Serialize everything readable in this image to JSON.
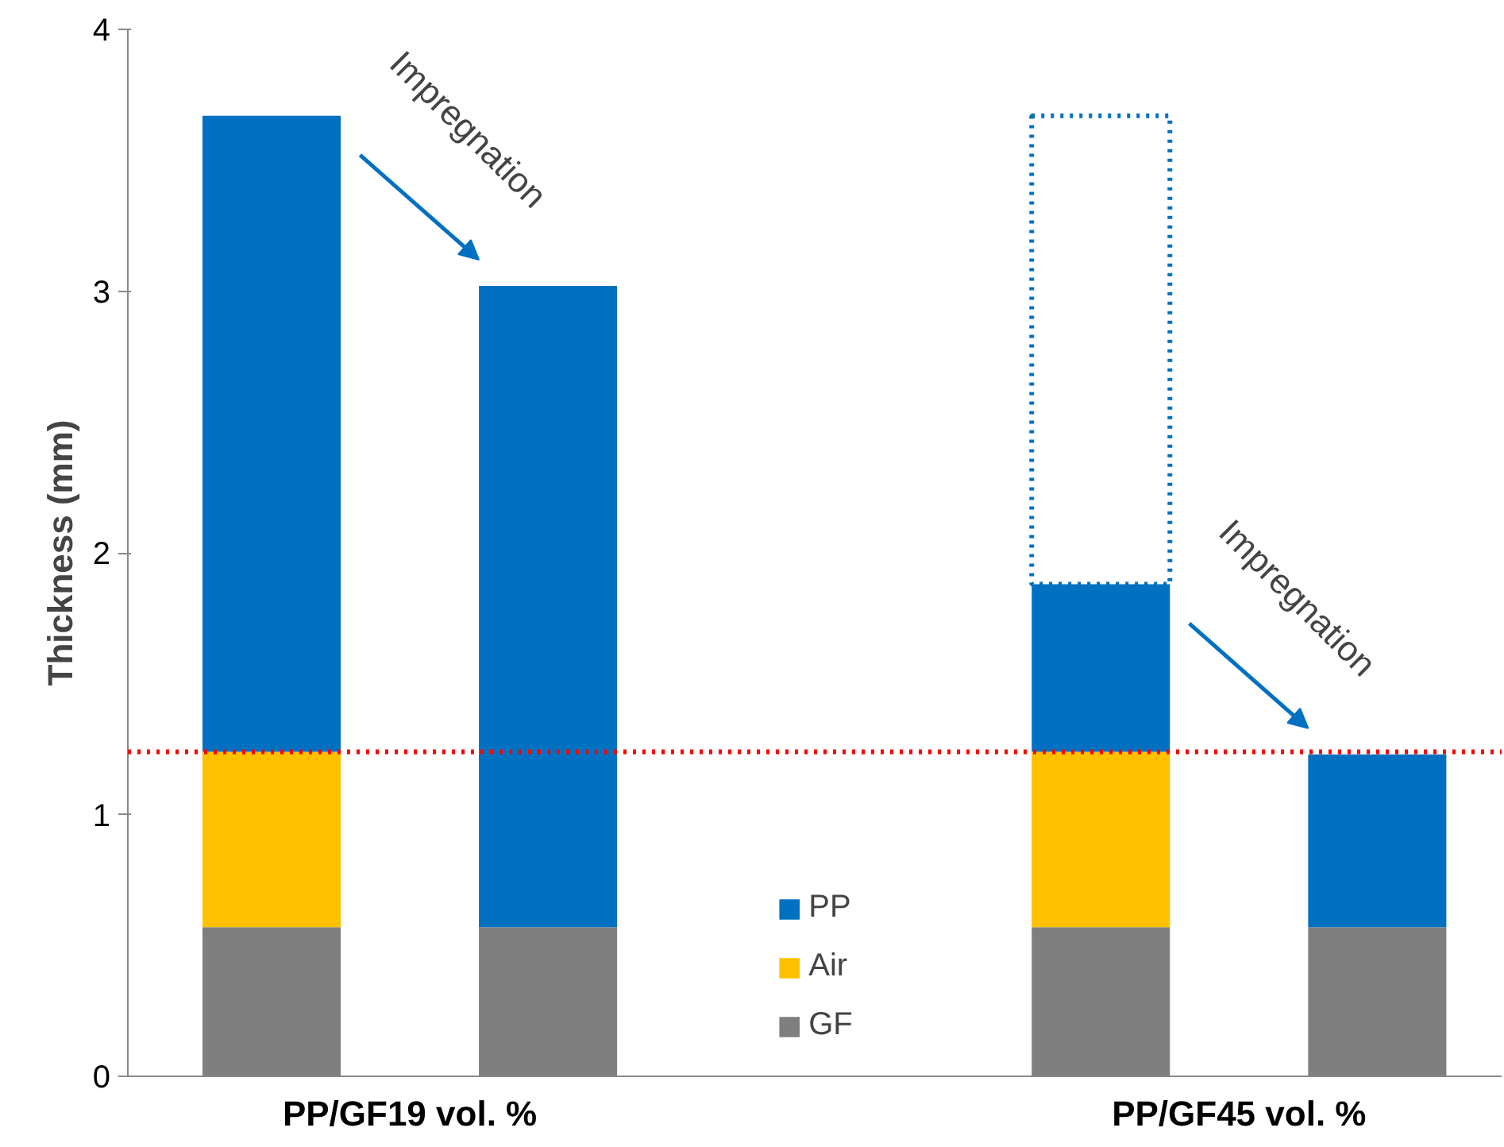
{
  "chart_data": {
    "type": "bar",
    "stacked": true,
    "ylabel": "Thickness (mm)",
    "categories": [
      null,
      null,
      null,
      null,
      null
    ],
    "ylim": [
      0,
      4
    ],
    "yticks": [
      0,
      1,
      2,
      3,
      4
    ],
    "series": [
      {
        "name": "GF",
        "color": "#7f7f7f",
        "values": [
          0.57,
          0.57,
          null,
          0.57,
          0.57
        ]
      },
      {
        "name": "Air",
        "color": "#ffc000",
        "values": [
          0.67,
          null,
          null,
          0.67,
          null
        ]
      },
      {
        "name": "PP",
        "color": "#0070c0",
        "values": [
          2.43,
          2.45,
          null,
          0.64,
          0.66
        ]
      },
      {
        "color": "#0070c0",
        "line_style": "dotted",
        "values": [
          null,
          null,
          null,
          1.79,
          null
        ]
      }
    ],
    "ref_lines": [
      {
        "axis": "y",
        "value": 1.24,
        "color": "#ff0000",
        "line_style": "dotted"
      }
    ],
    "annotations": [
      "Impregnation",
      "Impregnation",
      "PP/GF19 vol. %",
      "PP/GF45 vol. %"
    ],
    "legend": "bottom",
    "grid": false
  }
}
